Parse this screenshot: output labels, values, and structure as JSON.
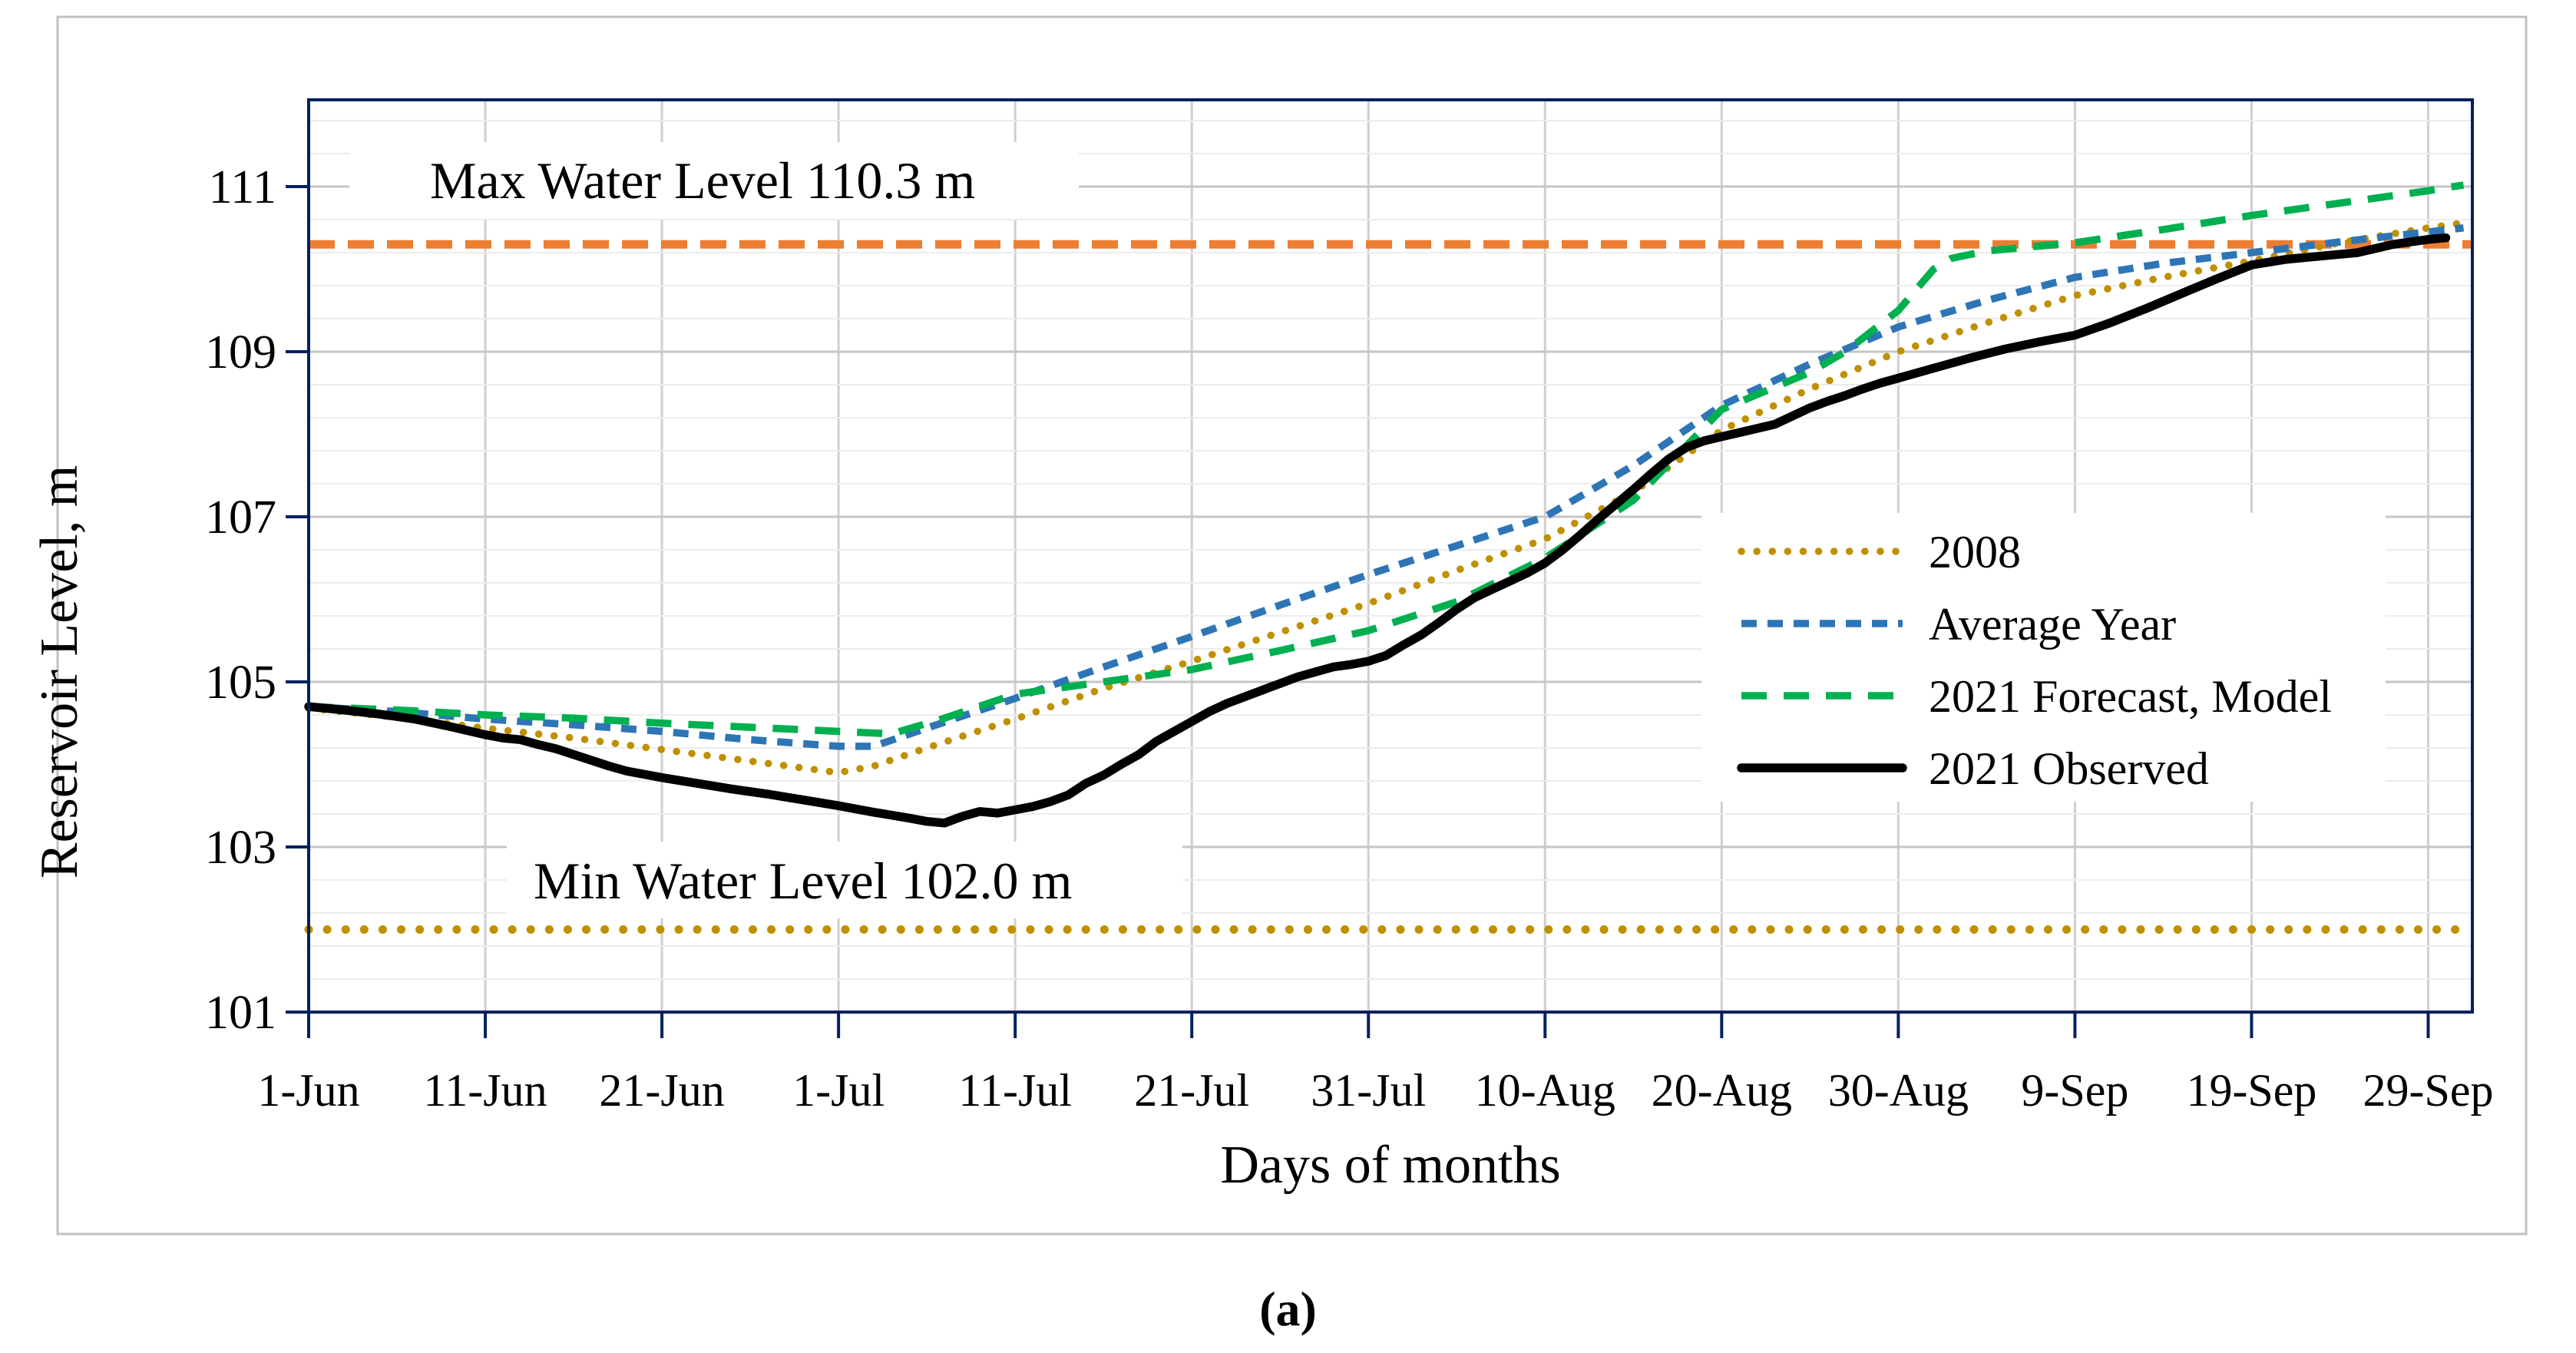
{
  "figure": {
    "caption": "(a)"
  },
  "colors": {
    "axis_frame": "#002060",
    "grid_major": "#C6C6C6",
    "grid_minor": "#ECECEC",
    "grid_vertical": "#CFCFCF",
    "max_line": "#ED7D31",
    "min_line": "#BF9000",
    "series_2008": "#BF9000",
    "series_average": "#2E75B6",
    "series_forecast": "#00B050",
    "series_observed": "#000000",
    "figure_border": "#C0C0C0",
    "background": "#FFFFFF"
  },
  "chart_data": {
    "type": "line",
    "title": "",
    "xlabel": "Days of months",
    "ylabel": "Reservoir Level, m",
    "x_axis": {
      "tick_days": [
        0,
        10,
        20,
        30,
        40,
        50,
        60,
        70,
        80,
        90,
        100,
        110,
        120
      ],
      "tick_labels": [
        "1-Jun",
        "11-Jun",
        "21-Jun",
        "1-Jul",
        "11-Jul",
        "21-Jul",
        "31-Jul",
        "10-Aug",
        "20-Aug",
        "30-Aug",
        "9-Sep",
        "19-Sep",
        "29-Sep"
      ],
      "range_days": [
        0,
        122.5
      ],
      "grid": true
    },
    "y_axis": {
      "ticks": [
        101,
        103,
        105,
        107,
        109,
        111
      ],
      "range": [
        101,
        112.05
      ],
      "major_step": 2,
      "minor_step": 0.4,
      "grid": true
    },
    "reference_lines": [
      {
        "id": "max",
        "label": "Max Water Level 110.3 m",
        "value": 110.3,
        "color": "#ED7D31",
        "style": "dash"
      },
      {
        "id": "min",
        "label": "Min Water Level 102.0 m",
        "value": 102.0,
        "color": "#BF9000",
        "style": "dot"
      }
    ],
    "legend_position": "inside-right-center",
    "series": [
      {
        "name": "2008",
        "color": "#BF9000",
        "style": "dot",
        "points": [
          [
            0,
            104.68
          ],
          [
            5,
            104.57
          ],
          [
            10,
            104.44
          ],
          [
            15,
            104.32
          ],
          [
            20,
            104.18
          ],
          [
            25,
            104.04
          ],
          [
            30,
            103.9
          ],
          [
            32,
            103.98
          ],
          [
            35,
            104.2
          ],
          [
            40,
            104.55
          ],
          [
            45,
            104.92
          ],
          [
            50,
            105.25
          ],
          [
            55,
            105.6
          ],
          [
            60,
            105.95
          ],
          [
            65,
            106.35
          ],
          [
            70,
            106.73
          ],
          [
            75,
            107.3
          ],
          [
            80,
            108.05
          ],
          [
            85,
            108.55
          ],
          [
            90,
            109.0
          ],
          [
            95,
            109.35
          ],
          [
            100,
            109.68
          ],
          [
            105,
            109.9
          ],
          [
            110,
            110.1
          ],
          [
            115,
            110.32
          ],
          [
            120,
            110.5
          ],
          [
            122,
            110.56
          ]
        ]
      },
      {
        "name": "Average Year",
        "color": "#2E75B6",
        "style": "dash",
        "points": [
          [
            0,
            104.7
          ],
          [
            5,
            104.64
          ],
          [
            10,
            104.55
          ],
          [
            15,
            104.48
          ],
          [
            20,
            104.4
          ],
          [
            25,
            104.3
          ],
          [
            30,
            104.22
          ],
          [
            32,
            104.22
          ],
          [
            35,
            104.44
          ],
          [
            40,
            104.8
          ],
          [
            45,
            105.18
          ],
          [
            50,
            105.55
          ],
          [
            55,
            105.93
          ],
          [
            60,
            106.3
          ],
          [
            65,
            106.65
          ],
          [
            70,
            107.0
          ],
          [
            75,
            107.62
          ],
          [
            80,
            108.35
          ],
          [
            85,
            108.85
          ],
          [
            90,
            109.3
          ],
          [
            95,
            109.62
          ],
          [
            100,
            109.9
          ],
          [
            105,
            110.07
          ],
          [
            110,
            110.2
          ],
          [
            115,
            110.33
          ],
          [
            120,
            110.45
          ],
          [
            122,
            110.5
          ]
        ]
      },
      {
        "name": "2021 Forecast, Model",
        "color": "#00B050",
        "style": "longdash",
        "points": [
          [
            0,
            104.7
          ],
          [
            5,
            104.66
          ],
          [
            10,
            104.6
          ],
          [
            15,
            104.56
          ],
          [
            20,
            104.5
          ],
          [
            25,
            104.45
          ],
          [
            30,
            104.4
          ],
          [
            33,
            104.37
          ],
          [
            36,
            104.56
          ],
          [
            40,
            104.85
          ],
          [
            45,
            105.0
          ],
          [
            50,
            105.15
          ],
          [
            55,
            105.38
          ],
          [
            60,
            105.62
          ],
          [
            65,
            105.97
          ],
          [
            70,
            106.5
          ],
          [
            75,
            107.2
          ],
          [
            80,
            108.3
          ],
          [
            85,
            108.75
          ],
          [
            87,
            109.0
          ],
          [
            90,
            109.5
          ],
          [
            92,
            110.0
          ],
          [
            93,
            110.13
          ],
          [
            95,
            110.22
          ],
          [
            100,
            110.32
          ],
          [
            105,
            110.48
          ],
          [
            110,
            110.65
          ],
          [
            115,
            110.8
          ],
          [
            120,
            110.95
          ],
          [
            122,
            111.02
          ]
        ]
      },
      {
        "name": "2021 Observed",
        "color": "#000000",
        "style": "solid",
        "points": [
          [
            0,
            104.7
          ],
          [
            2,
            104.66
          ],
          [
            4,
            104.61
          ],
          [
            6,
            104.55
          ],
          [
            8,
            104.46
          ],
          [
            10,
            104.36
          ],
          [
            11,
            104.32
          ],
          [
            12,
            104.3
          ],
          [
            13,
            104.24
          ],
          [
            14,
            104.19
          ],
          [
            15,
            104.12
          ],
          [
            16,
            104.05
          ],
          [
            17,
            103.98
          ],
          [
            18,
            103.92
          ],
          [
            20,
            103.84
          ],
          [
            22,
            103.77
          ],
          [
            24,
            103.7
          ],
          [
            26,
            103.64
          ],
          [
            28,
            103.57
          ],
          [
            30,
            103.5
          ],
          [
            32,
            103.42
          ],
          [
            34,
            103.35
          ],
          [
            35,
            103.31
          ],
          [
            36,
            103.29
          ],
          [
            37,
            103.37
          ],
          [
            38,
            103.43
          ],
          [
            39,
            103.41
          ],
          [
            40,
            103.45
          ],
          [
            41,
            103.49
          ],
          [
            42,
            103.55
          ],
          [
            43,
            103.63
          ],
          [
            44,
            103.77
          ],
          [
            45,
            103.87
          ],
          [
            46,
            104.0
          ],
          [
            47,
            104.12
          ],
          [
            48,
            104.28
          ],
          [
            49,
            104.4
          ],
          [
            50,
            104.52
          ],
          [
            51,
            104.64
          ],
          [
            52,
            104.74
          ],
          [
            53,
            104.82
          ],
          [
            54,
            104.9
          ],
          [
            55,
            104.98
          ],
          [
            56,
            105.06
          ],
          [
            57,
            105.12
          ],
          [
            58,
            105.18
          ],
          [
            59,
            105.21
          ],
          [
            60,
            105.25
          ],
          [
            61,
            105.32
          ],
          [
            62,
            105.45
          ],
          [
            63,
            105.57
          ],
          [
            64,
            105.72
          ],
          [
            65,
            105.88
          ],
          [
            66,
            106.02
          ],
          [
            67,
            106.12
          ],
          [
            68,
            106.22
          ],
          [
            69,
            106.32
          ],
          [
            70,
            106.44
          ],
          [
            71,
            106.6
          ],
          [
            72,
            106.78
          ],
          [
            73,
            106.97
          ],
          [
            74,
            107.15
          ],
          [
            75,
            107.33
          ],
          [
            76,
            107.52
          ],
          [
            77,
            107.7
          ],
          [
            78,
            107.84
          ],
          [
            79,
            107.92
          ],
          [
            80,
            107.97
          ],
          [
            81,
            108.02
          ],
          [
            82,
            108.07
          ],
          [
            83,
            108.12
          ],
          [
            84,
            108.22
          ],
          [
            85,
            108.32
          ],
          [
            86,
            108.4
          ],
          [
            87,
            108.47
          ],
          [
            88,
            108.55
          ],
          [
            89,
            108.62
          ],
          [
            90,
            108.68
          ],
          [
            92,
            108.8
          ],
          [
            94,
            108.92
          ],
          [
            96,
            109.03
          ],
          [
            98,
            109.12
          ],
          [
            100,
            109.2
          ],
          [
            102,
            109.35
          ],
          [
            104,
            109.52
          ],
          [
            106,
            109.7
          ],
          [
            108,
            109.88
          ],
          [
            110,
            110.05
          ],
          [
            112,
            110.12
          ],
          [
            114,
            110.16
          ],
          [
            116,
            110.2
          ],
          [
            118,
            110.3
          ],
          [
            120,
            110.36
          ],
          [
            121,
            110.38
          ]
        ]
      }
    ]
  }
}
